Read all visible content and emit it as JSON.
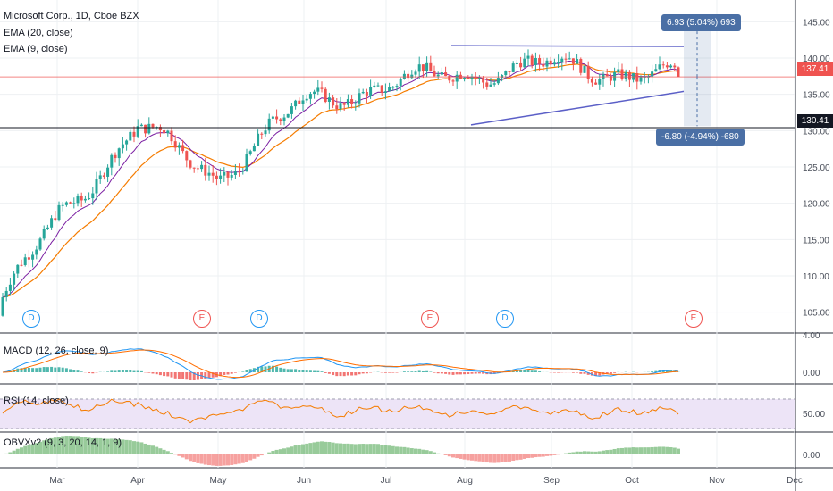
{
  "header": {
    "title": "Microsoft Corp., 1D, Cboe BZX",
    "ema20": "EMA (20, close)",
    "ema9": "EMA (9, close)"
  },
  "price_axis": {
    "ticks": [
      "145.00",
      "140.00",
      "135.00",
      "130.00",
      "125.00",
      "120.00",
      "115.00",
      "110.00",
      "105.00"
    ],
    "current_price": "137.41",
    "hline_price": "130.41"
  },
  "time_axis": {
    "labels": [
      "Mar",
      "Apr",
      "May",
      "Jun",
      "Jul",
      "Aug",
      "Sep",
      "Oct",
      "Nov",
      "Dec"
    ]
  },
  "annotations": {
    "up_box": "6.93 (5.04%) 693",
    "down_box": "-6.80 (-4.94%) -680"
  },
  "events": [
    {
      "label": "D",
      "kind": "dividend"
    },
    {
      "label": "E",
      "kind": "earnings"
    },
    {
      "label": "D",
      "kind": "dividend"
    },
    {
      "label": "E",
      "kind": "earnings"
    },
    {
      "label": "D",
      "kind": "dividend"
    },
    {
      "label": "E",
      "kind": "earnings"
    }
  ],
  "indicators": {
    "macd": {
      "label": "MACD (12, 26, close, 9)",
      "ticks": [
        "4.00",
        "0.00"
      ]
    },
    "rsi": {
      "label": "RSI (14, close)",
      "ticks": [
        "50.00"
      ]
    },
    "obv": {
      "label": "OBVXv2 (9, 3, 20, 14, 1, 9)",
      "ticks": [
        "0.00"
      ]
    }
  },
  "colors": {
    "up": "#26a69a",
    "down": "#ef5350",
    "ema20": "#f57c00",
    "ema9": "#7b1fa2",
    "trend": "#5b5fc7",
    "macd": "#2196f3",
    "signal": "#ff6d00",
    "rsi": "#f57c00",
    "rsi_band": "#ede4f7",
    "ann": "#4a6fa5"
  },
  "chart_data": {
    "type": "candlestick",
    "title": "Microsoft Corp., 1D, Cboe BZX",
    "ylim": [
      102.5,
      147.5
    ],
    "months": [
      "Mar",
      "Apr",
      "May",
      "Jun",
      "Jul",
      "Aug",
      "Sep",
      "Oct"
    ],
    "close_path_monthly": [
      {
        "month": "Feb",
        "close": 106.5
      },
      {
        "month": "Mar",
        "close": 117.9
      },
      {
        "month": "Apr",
        "close": 130.6
      },
      {
        "month": "May",
        "close": 123.7
      },
      {
        "month": "Jun",
        "close": 133.9
      },
      {
        "month": "Jul",
        "close": 136.3
      },
      {
        "month": "Aug",
        "close": 137.9
      },
      {
        "month": "Sep",
        "close": 139.0
      },
      {
        "month": "Oct",
        "close": 137.41
      }
    ],
    "last_close": 137.41,
    "horizontal_line": 130.41,
    "measure_up": {
      "change": 6.93,
      "pct": 5.04,
      "ticks": 693
    },
    "measure_down": {
      "change": -6.8,
      "pct": -4.94,
      "ticks": -680
    },
    "trendline_top": [
      {
        "month": "Jul",
        "value": 141.7
      },
      {
        "month": "Oct",
        "value": 141.6
      }
    ],
    "trendline_bottom": [
      {
        "month": "Aug",
        "value": 130.8
      },
      {
        "month": "Oct",
        "value": 135.4
      }
    ]
  }
}
